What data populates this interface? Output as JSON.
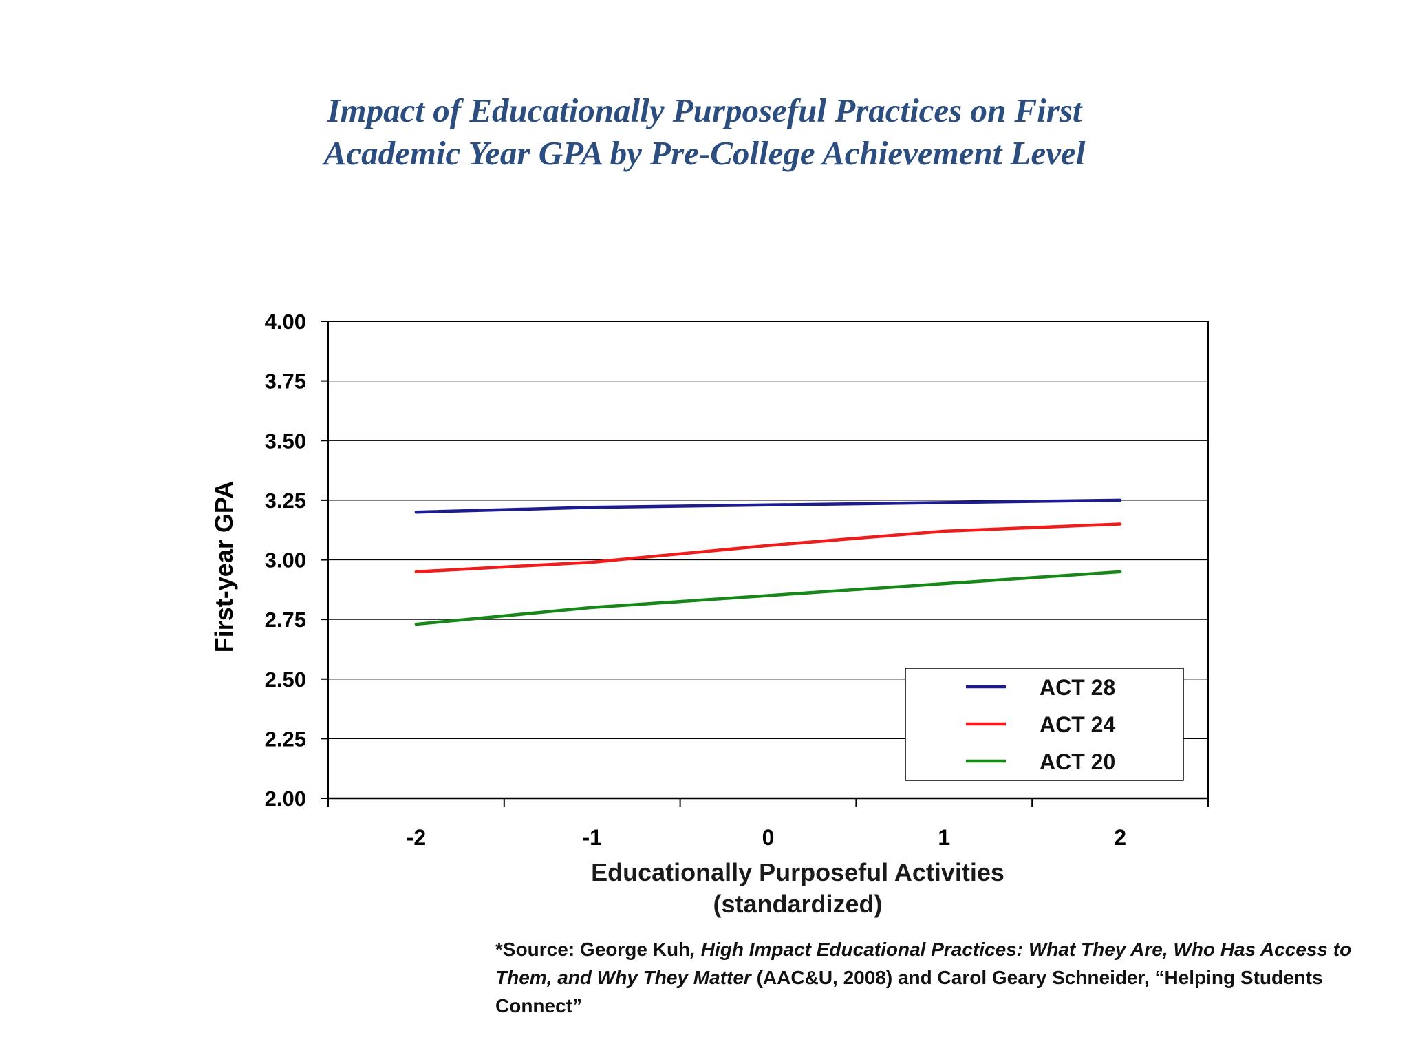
{
  "chart_data": {
    "type": "line",
    "title": "Impact of Educationally Purposeful Practices on First Academic Year GPA by Pre-College Achievement Level",
    "title_lines": [
      "Impact of Educationally Purposeful Practices on First",
      "Academic Year GPA by Pre-College Achievement Level"
    ],
    "xlabel_lines": [
      "Educationally Purposeful Activities",
      "(standardized)"
    ],
    "ylabel": "First-year GPA",
    "x": [
      -2,
      -1,
      0,
      1,
      2
    ],
    "x_ticklabels": [
      "-2",
      "-1",
      "0",
      "1",
      "2"
    ],
    "xlim": [
      -2.5,
      2.5
    ],
    "ylim": [
      2.0,
      4.0
    ],
    "y_ticks": [
      2.0,
      2.25,
      2.5,
      2.75,
      3.0,
      3.25,
      3.5,
      3.75,
      4.0
    ],
    "y_ticklabels": [
      "2.00",
      "2.25",
      "2.50",
      "2.75",
      "3.00",
      "3.25",
      "3.50",
      "3.75",
      "4.00"
    ],
    "grid": true,
    "legend_position": "bottom-right",
    "series": [
      {
        "name": "ACT 28",
        "color": "#1c1c8c",
        "values": [
          3.2,
          3.22,
          3.23,
          3.24,
          3.25
        ]
      },
      {
        "name": "ACT 24",
        "color": "#f01c1c",
        "values": [
          2.95,
          2.99,
          3.06,
          3.12,
          3.15
        ]
      },
      {
        "name": "ACT 20",
        "color": "#178717",
        "values": [
          2.73,
          2.8,
          2.85,
          2.9,
          2.95
        ]
      }
    ]
  },
  "source": {
    "prefix": "*Source: George Kuh",
    "italic_part": ", High Impact Educational Practices: What They Are, Who Has Access to Them, and Why They Matter",
    "suffix": " (AAC&U, 2008) and Carol Geary Schneider, “Helping Students Connect”"
  },
  "colors": {
    "title": "#2b4d7f",
    "axis": "#000000",
    "grid": "#000000"
  }
}
